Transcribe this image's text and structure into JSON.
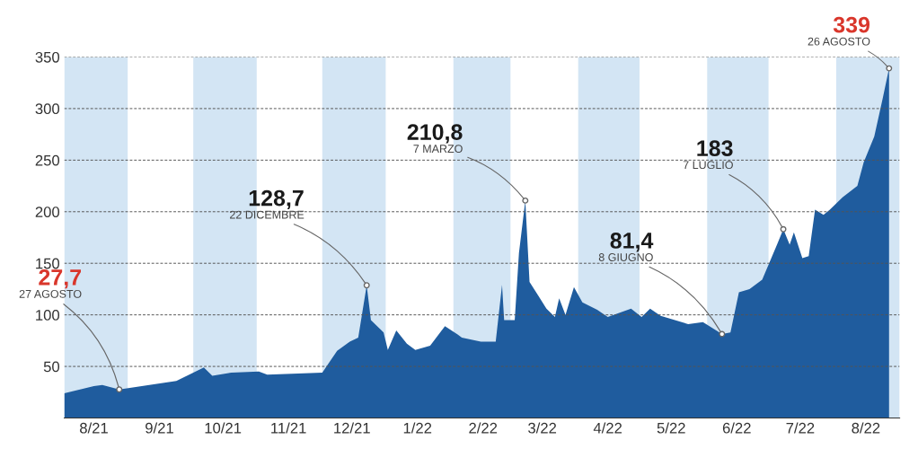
{
  "chart_data": {
    "type": "area",
    "x": [
      "2021-08-01",
      "2021-08-15",
      "2021-08-19",
      "2021-08-27",
      "2021-09-23",
      "2021-10-06",
      "2021-10-10",
      "2021-10-19",
      "2021-11-01",
      "2021-11-05",
      "2021-12-01",
      "2021-12-08",
      "2021-12-14",
      "2021-12-18",
      "2021-12-22",
      "2021-12-24",
      "2021-12-30",
      "2022-01-01",
      "2022-01-05",
      "2022-01-10",
      "2022-01-14",
      "2022-01-21",
      "2022-01-28",
      "2022-02-03",
      "2022-02-05",
      "2022-02-14",
      "2022-02-21",
      "2022-02-24",
      "2022-02-25",
      "2022-03-02",
      "2022-03-04",
      "2022-03-07",
      "2022-03-09",
      "2022-03-13",
      "2022-03-17",
      "2022-03-21",
      "2022-03-23",
      "2022-03-26",
      "2022-03-30",
      "2022-04-03",
      "2022-04-10",
      "2022-04-15",
      "2022-04-26",
      "2022-05-01",
      "2022-05-05",
      "2022-05-10",
      "2022-05-23",
      "2022-05-30",
      "2022-06-08",
      "2022-06-12",
      "2022-06-16",
      "2022-06-21",
      "2022-06-27",
      "2022-07-04",
      "2022-07-07",
      "2022-07-10",
      "2022-07-12",
      "2022-07-16",
      "2022-07-19",
      "2022-07-22",
      "2022-07-26",
      "2022-07-29",
      "2022-08-04",
      "2022-08-11",
      "2022-08-14",
      "2022-08-19",
      "2022-08-23",
      "2022-08-26"
    ],
    "series": [
      {
        "color": "#1f5c9e",
        "values": [
          24,
          31,
          32,
          27.7,
          36,
          49,
          41,
          44,
          45,
          42,
          44,
          65,
          74,
          78,
          128.7,
          95,
          83,
          66,
          85,
          72,
          66,
          70,
          89,
          81,
          78,
          74,
          74,
          129,
          95,
          95,
          160,
          210.8,
          132,
          119,
          106,
          98,
          116,
          100,
          127,
          112,
          105,
          98,
          106,
          98,
          106,
          99,
          91,
          93,
          81.4,
          83,
          122,
          125,
          134,
          168,
          183,
          168,
          180,
          155,
          157,
          202,
          197,
          202,
          214,
          225,
          248,
          273,
          310,
          339
        ]
      }
    ],
    "xlim": [
      "2021-08-01",
      "2022-08-31"
    ],
    "xticks": [
      {
        "value": "2021-08-15",
        "label": "8/21"
      },
      {
        "value": "2021-09-15",
        "label": "9/21"
      },
      {
        "value": "2021-10-15",
        "label": "10/21"
      },
      {
        "value": "2021-11-15",
        "label": "11/21"
      },
      {
        "value": "2021-12-15",
        "label": "12/21"
      },
      {
        "value": "2022-01-15",
        "label": "1/22"
      },
      {
        "value": "2022-02-15",
        "label": "2/22"
      },
      {
        "value": "2022-03-15",
        "label": "3/22"
      },
      {
        "value": "2022-04-15",
        "label": "4/22"
      },
      {
        "value": "2022-05-15",
        "label": "5/22"
      },
      {
        "value": "2022-06-15",
        "label": "6/22"
      },
      {
        "value": "2022-07-15",
        "label": "7/22"
      },
      {
        "value": "2022-08-15",
        "label": "8/22"
      }
    ],
    "ylim": [
      0,
      350
    ],
    "yticks": [
      50,
      100,
      150,
      200,
      250,
      300,
      350
    ],
    "grid": "y",
    "bands": [
      {
        "axis": "x",
        "from": "2021-08-01",
        "to": "2021-08-31",
        "color": "#d3e5f4"
      },
      {
        "axis": "x",
        "from": "2021-10-01",
        "to": "2021-10-31",
        "color": "#d3e5f4"
      },
      {
        "axis": "x",
        "from": "2021-12-01",
        "to": "2021-12-31",
        "color": "#d3e5f4"
      },
      {
        "axis": "x",
        "from": "2022-02-01",
        "to": "2022-02-28",
        "color": "#d3e5f4"
      },
      {
        "axis": "x",
        "from": "2022-04-01",
        "to": "2022-04-30",
        "color": "#d3e5f4"
      },
      {
        "axis": "x",
        "from": "2022-06-01",
        "to": "2022-06-30",
        "color": "#d3e5f4"
      },
      {
        "axis": "x",
        "from": "2022-08-01",
        "to": "2022-08-31",
        "color": "#d3e5f4"
      }
    ],
    "annotations": [
      {
        "text": "27,7",
        "x": "2021-08-27",
        "y": 27.7
      },
      {
        "text": "27 AGOSTO",
        "x": "2021-08-27",
        "y": 27.7
      },
      {
        "text": "128,7",
        "x": "2021-12-22",
        "y": 128.7
      },
      {
        "text": "22 DICEMBRE",
        "x": "2021-12-22",
        "y": 128.7
      },
      {
        "text": "210,8",
        "x": "2022-03-07",
        "y": 210.8
      },
      {
        "text": "7 MARZO",
        "x": "2022-03-07",
        "y": 210.8
      },
      {
        "text": "81,4",
        "x": "2022-06-08",
        "y": 81.4
      },
      {
        "text": "8 GIUGNO",
        "x": "2022-06-08",
        "y": 81.4
      },
      {
        "text": "183",
        "x": "2022-07-07",
        "y": 183
      },
      {
        "text": "7 LUGLIO",
        "x": "2022-07-07",
        "y": 183
      },
      {
        "text": "339",
        "x": "2022-08-26",
        "y": 339
      },
      {
        "text": "26 AGOSTO",
        "x": "2022-08-26",
        "y": 339
      }
    ]
  }
}
